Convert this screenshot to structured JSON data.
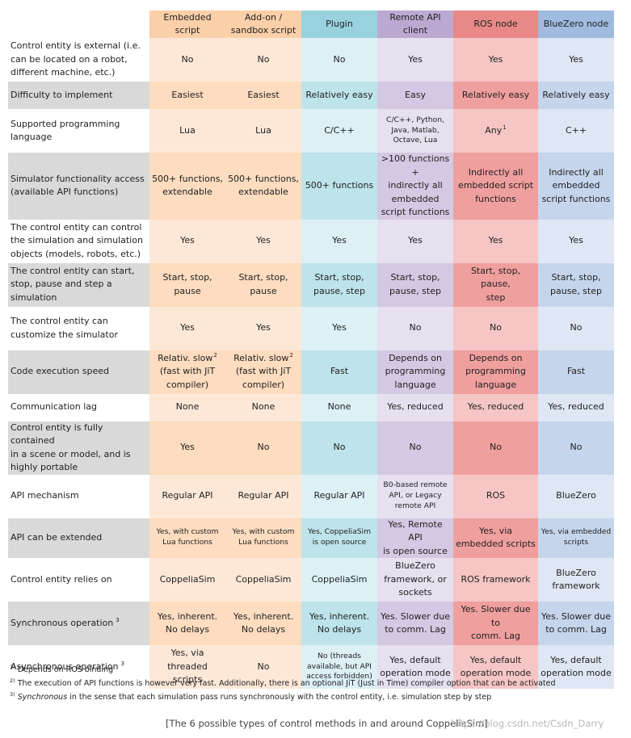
{
  "colors": {
    "embedded": [
      "#fbcfa8",
      "#fde8d7",
      "#fddcbf"
    ],
    "addon": [
      "#fbcfa8",
      "#fde8d7",
      "#fddcbf"
    ],
    "plugin": [
      "#99d2de",
      "#dcf0f5",
      "#bde3eb"
    ],
    "remote": [
      "#bca9d1",
      "#e6e0ef",
      "#d4c8e3"
    ],
    "ros": [
      "#e88987",
      "#f5c6c5",
      "#ef9f9e"
    ],
    "bluezero": [
      "#9fbbdf",
      "#dee7f3",
      "#c5d5ec"
    ],
    "label_odd": "#d9d9d9",
    "label_even": "#ffffff"
  },
  "columns": [
    {
      "key": "embedded",
      "label": "Embedded\nscript"
    },
    {
      "key": "addon",
      "label": "Add-on /\nsandbox script"
    },
    {
      "key": "plugin",
      "label": "Plugin"
    },
    {
      "key": "remote",
      "label": "Remote API\nclient"
    },
    {
      "key": "ros",
      "label": "ROS node"
    },
    {
      "key": "bluezero",
      "label": "BlueZero node"
    }
  ],
  "rows": [
    {
      "label": "Control entity is external (i.e.\ncan be located on a robot,\ndifferent machine, etc.)",
      "cells": [
        "No",
        "No",
        "No",
        "Yes",
        "Yes",
        "Yes"
      ]
    },
    {
      "label": "Difficulty to implement",
      "cells": [
        "Easiest",
        "Easiest",
        "Relatively easy",
        "Easy",
        "Relatively easy",
        "Relatively easy"
      ]
    },
    {
      "label": "Supported programming\nlanguage",
      "cells": [
        "Lua",
        "Lua",
        "C/C++",
        "C/C++, Python,\nJava, Matlab,\nOctave, Lua",
        "Any",
        "C++"
      ]
    },
    {
      "label": "Simulator functionality access\n(available API functions)",
      "cells": [
        "500+ functions,\nextendable",
        "500+ functions,\nextendable",
        "500+ functions",
        ">100 functions +\nindirectly all\nembedded\nscript functions",
        "Indirectly all\nembedded script\nfunctions",
        "Indirectly all\nembedded\nscript functions"
      ]
    },
    {
      "label": "The control entity can control\nthe simulation and simulation\nobjects (models, robots, etc.)",
      "cells": [
        "Yes",
        "Yes",
        "Yes",
        "Yes",
        "Yes",
        "Yes"
      ]
    },
    {
      "label": "The control entity can start,\nstop, pause and step a\nsimulation",
      "cells": [
        "Start, stop,\npause",
        "Start, stop,\npause",
        "Start, stop,\npause, step",
        "Start, stop,\npause, step",
        "Start, stop, pause,\nstep",
        "Start, stop,\npause, step"
      ]
    },
    {
      "label": "The control entity can\ncustomize the simulator",
      "cells": [
        "Yes",
        "Yes",
        "Yes",
        "No",
        "No",
        "No"
      ]
    },
    {
      "label": "Code execution speed",
      "cells": [
        "Relativ. slow\n(fast with JiT\ncompiler)",
        "Relativ. slow\n(fast with JiT\ncompiler)",
        "Fast",
        "Depends on\nprogramming\nlanguage",
        "Depends on\nprogramming\nlanguage",
        "Fast"
      ]
    },
    {
      "label": "Communication lag",
      "cells": [
        "None",
        "None",
        "None",
        "Yes, reduced",
        "Yes, reduced",
        "Yes, reduced"
      ]
    },
    {
      "label": "Control entity is fully contained\nin a scene or model, and is\nhighly portable",
      "cells": [
        "Yes",
        "No",
        "No",
        "No",
        "No",
        "No"
      ]
    },
    {
      "label": "API mechanism",
      "cells": [
        "Regular API",
        "Regular API",
        "Regular API",
        "B0-based remote\nAPI, or Legacy\nremote API",
        "ROS",
        "BlueZero"
      ]
    },
    {
      "label": "API can be extended",
      "cells": [
        "Yes, with custom\nLua functions",
        "Yes, with custom\nLua functions",
        "Yes, CoppeliaSim\nis open source",
        "Yes, Remote API\nis open source",
        "Yes, via\nembedded scripts",
        "Yes, via embedded\nscripts"
      ]
    },
    {
      "label": "Control entity relies on",
      "cells": [
        "CoppeliaSim",
        "CoppeliaSim",
        "CoppeliaSim",
        "BlueZero\nframework, or\nsockets",
        "ROS framework",
        "BlueZero\nframework"
      ]
    },
    {
      "label": "Synchronous operation",
      "cells": [
        "Yes, inherent.\nNo delays",
        "Yes, inherent.\nNo delays",
        "Yes, inherent.\nNo delays",
        "Yes. Slower due\nto comm. Lag",
        "Yes. Slower due to\ncomm. Lag",
        "Yes. Slower due\nto comm. Lag"
      ]
    },
    {
      "label": "Asynchronous operation",
      "cells": [
        "Yes, via\nthreaded scripts",
        "No",
        "No (threads\navailable, but API\naccess forbidden)",
        "Yes, default\noperation mode",
        "Yes, default\noperation mode",
        "Yes, default\noperation mode"
      ]
    }
  ],
  "footnotes": {
    "marks": {
      "fn1": "1)",
      "fn2": "2)",
      "fn3": "3)",
      "sup1": "1",
      "sup2": "2",
      "sup3": "3"
    },
    "f1": "Depends on ROS binding",
    "f2": "The execution of API functions is however very fast. Additionally, there is an optional JiT (Just in Time) compiler option that can be activated",
    "f3_em": "Synchronous",
    "f3_rest": " in the sense that each simulation pass runs synchronously with the control entity, i.e. simulation step by step"
  },
  "caption": "[The 6 possible types of control methods in and around CoppeliaSim]",
  "watermark": "https://blog.csdn.net/Csdn_Darry"
}
